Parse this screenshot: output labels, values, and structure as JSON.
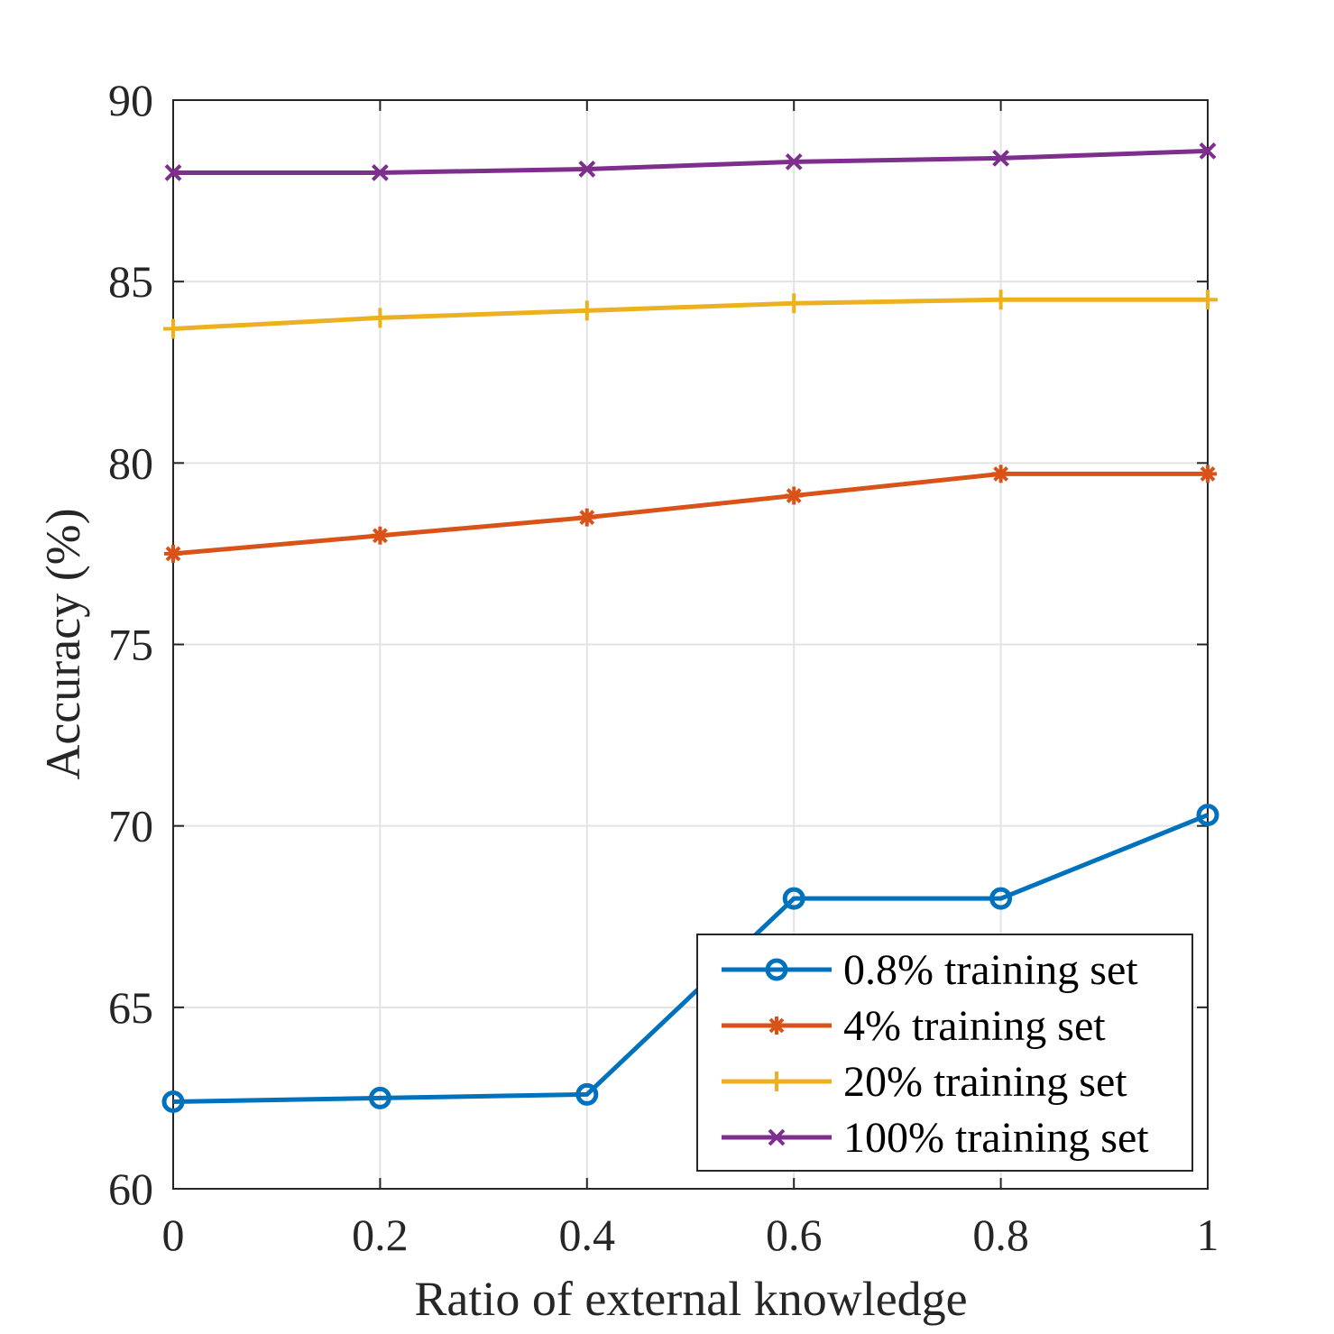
{
  "chart_data": {
    "type": "line",
    "title": "",
    "xlabel": "Ratio of external knowledge",
    "ylabel": "Accuracy (%)",
    "x": [
      0,
      0.2,
      0.4,
      0.6,
      0.8,
      1
    ],
    "xlim": [
      0,
      1
    ],
    "ylim": [
      60,
      90
    ],
    "xticks": [
      0,
      0.2,
      0.4,
      0.6,
      0.8,
      1
    ],
    "xtick_labels": [
      "0",
      "0.2",
      "0.4",
      "0.6",
      "0.8",
      "1"
    ],
    "yticks": [
      60,
      65,
      70,
      75,
      80,
      85,
      90
    ],
    "ytick_labels": [
      "60",
      "65",
      "70",
      "75",
      "80",
      "85",
      "90"
    ],
    "grid": true,
    "legend_position": "bottom-right",
    "series": [
      {
        "name": "0.8% training set",
        "marker": "circle",
        "color": "#0072BD",
        "values": [
          62.4,
          62.5,
          62.6,
          68.0,
          68.0,
          70.3
        ]
      },
      {
        "name": "4% training set",
        "marker": "asterisk",
        "color": "#D95319",
        "values": [
          77.5,
          78.0,
          78.5,
          79.1,
          79.7,
          79.7
        ]
      },
      {
        "name": "20% training set",
        "marker": "plus",
        "color": "#EDB120",
        "values": [
          83.7,
          84.0,
          84.2,
          84.4,
          84.5,
          84.5
        ]
      },
      {
        "name": "100% training set",
        "marker": "x",
        "color": "#7E2F8E",
        "values": [
          88.0,
          88.0,
          88.1,
          88.3,
          88.4,
          88.6
        ]
      }
    ]
  }
}
